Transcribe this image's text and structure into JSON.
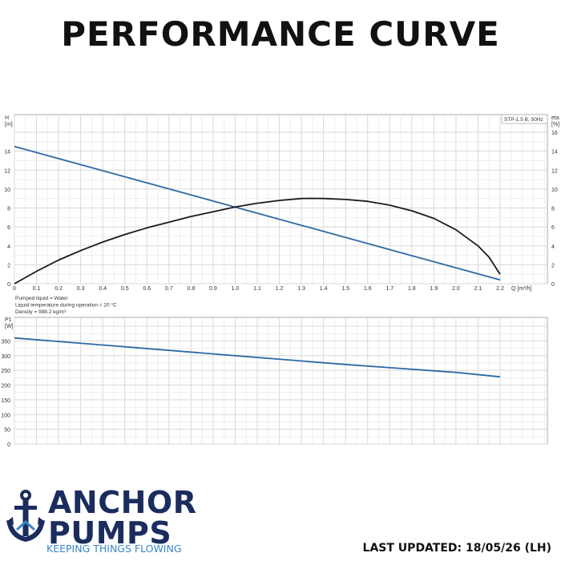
{
  "page": {
    "title": "PERFORMANCE CURVE",
    "last_updated": "LAST UPDATED: 18/05/26 (LH)"
  },
  "brand": {
    "line1": "ANCHOR",
    "line2": "PUMPS",
    "tagline": "KEEPING THINGS FLOWING",
    "icon": "anchor-icon",
    "colors": {
      "navy": "#1b2c5e",
      "blue": "#3a86c8"
    }
  },
  "chart_data": [
    {
      "type": "line",
      "legend": "STP-1.5 B, 50Hz",
      "ylabel": "H",
      "yunit": "[m]",
      "y2label": "eta",
      "y2unit": "[%]",
      "xlabel": "Q [m³/h]",
      "xlim": [
        0,
        2.2
      ],
      "ylim": [
        0,
        16
      ],
      "y2lim": [
        0,
        16
      ],
      "xticks": [
        "0",
        "0.1",
        "0.2",
        "0.3",
        "0.4",
        "0.5",
        "0.6",
        "0.7",
        "0.8",
        "0.9",
        "1.0",
        "1.1",
        "1.2",
        "1.3",
        "1.4",
        "1.5",
        "1.6",
        "1.7",
        "1.8",
        "1.9",
        "2.0",
        "2.1",
        "2.2"
      ],
      "yticks": [
        "0",
        "2",
        "4",
        "6",
        "8",
        "10",
        "12",
        "14"
      ],
      "y2ticks": [
        "0",
        "2",
        "4",
        "6",
        "8",
        "10",
        "12",
        "14",
        "16"
      ],
      "grid": true,
      "series": [
        {
          "name": "H",
          "axis": "left",
          "color": "#2e6aa5",
          "points": [
            [
              0,
              14.5
            ],
            [
              2.2,
              0.4
            ]
          ]
        },
        {
          "name": "eta",
          "axis": "right",
          "color": "#1a1a1a",
          "points": [
            [
              0,
              0
            ],
            [
              0.1,
              1.3
            ],
            [
              0.2,
              2.5
            ],
            [
              0.3,
              3.5
            ],
            [
              0.4,
              4.4
            ],
            [
              0.5,
              5.2
            ],
            [
              0.6,
              5.9
            ],
            [
              0.7,
              6.5
            ],
            [
              0.8,
              7.1
            ],
            [
              0.9,
              7.6
            ],
            [
              1.0,
              8.1
            ],
            [
              1.1,
              8.5
            ],
            [
              1.2,
              8.8
            ],
            [
              1.3,
              9.0
            ],
            [
              1.35,
              9.02
            ],
            [
              1.4,
              9.0
            ],
            [
              1.5,
              8.9
            ],
            [
              1.6,
              8.7
            ],
            [
              1.7,
              8.3
            ],
            [
              1.8,
              7.7
            ],
            [
              1.9,
              6.9
            ],
            [
              2.0,
              5.7
            ],
            [
              2.1,
              4.0
            ],
            [
              2.15,
              2.8
            ],
            [
              2.2,
              1.0
            ]
          ]
        }
      ],
      "notes": [
        "Pumped liquid = Water",
        "Liquid temperature during operation = 20 °C",
        "Density = 998.2 kg/m³"
      ]
    },
    {
      "type": "line",
      "ylabel": "P1",
      "yunit": "[W]",
      "xlim": [
        0,
        2.2
      ],
      "ylim": [
        0,
        400
      ],
      "yticks": [
        "0",
        "50",
        "100",
        "150",
        "200",
        "250",
        "300",
        "350"
      ],
      "grid": true,
      "series": [
        {
          "name": "P1",
          "axis": "left",
          "color": "#2e6aa5",
          "points": [
            [
              0,
              360
            ],
            [
              0.5,
              330
            ],
            [
              1.0,
              300
            ],
            [
              1.5,
              270
            ],
            [
              2.0,
              243
            ],
            [
              2.2,
              228
            ]
          ]
        }
      ]
    }
  ]
}
